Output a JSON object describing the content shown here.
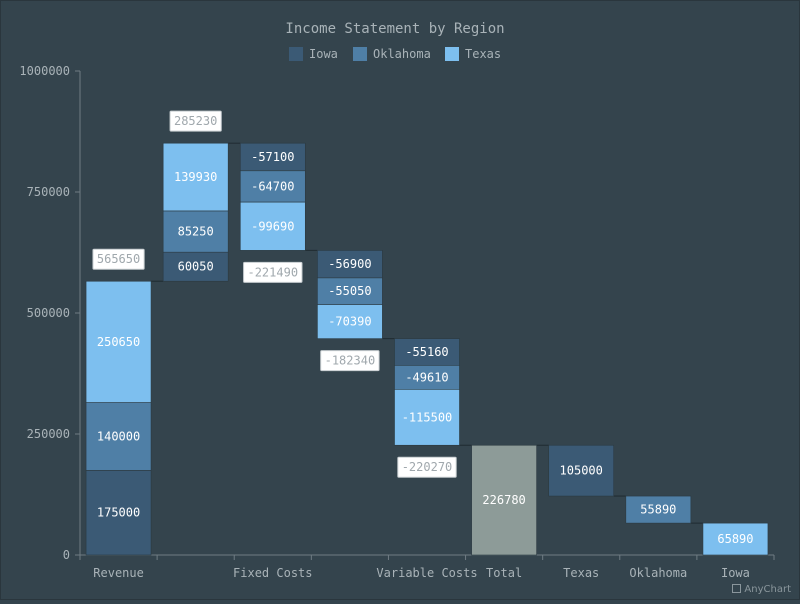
{
  "colors": {
    "background": "#34444d",
    "axis": "#6f7c83",
    "text": "#a9b3b8",
    "label_text": "#ffffff",
    "Iowa": "#3b5a75",
    "Oklahoma": "#4f7fa6",
    "Texas": "#7dbfef",
    "total": "#8d9b98",
    "connector": "#1f2b31",
    "callout_fill": "#ffffff",
    "callout_text": "#a0a8ad"
  },
  "credit": "AnyChart",
  "chart_data": {
    "type": "bar",
    "subtype": "stacked-waterfall",
    "title": "Income Statement by Region",
    "xlabel": "",
    "ylabel": "",
    "ylim": [
      0,
      1000000
    ],
    "y_ticks": [
      "0",
      "250000",
      "500000",
      "750000",
      "1000000"
    ],
    "y_tick_values": [
      0,
      250000,
      500000,
      750000,
      1000000
    ],
    "legend": {
      "position": "top",
      "entries": [
        "Iowa",
        "Oklahoma",
        "Texas"
      ]
    },
    "grid": false,
    "categories": [
      "Revenue",
      "",
      "Fixed Costs",
      "",
      "Variable Costs",
      "Total",
      "Texas",
      "Oklahoma",
      "Iowa"
    ],
    "bars": [
      {
        "category": "Revenue",
        "base": 0,
        "segments": [
          {
            "series": "Iowa",
            "value": 175000,
            "label": "175000"
          },
          {
            "series": "Oklahoma",
            "value": 140000,
            "label": "140000"
          },
          {
            "series": "Texas",
            "value": 250650,
            "label": "250650"
          }
        ],
        "total": 565650,
        "total_label": "565650"
      },
      {
        "category": "",
        "base": 565650,
        "segments": [
          {
            "series": "Iowa",
            "value": 60050,
            "label": "60050"
          },
          {
            "series": "Oklahoma",
            "value": 85250,
            "label": "85250"
          },
          {
            "series": "Texas",
            "value": 139930,
            "label": "139930"
          }
        ],
        "total": 285230,
        "total_label": "285230"
      },
      {
        "category": "Fixed Costs",
        "base": 850880,
        "segments": [
          {
            "series": "Iowa",
            "value": -57100,
            "label": "-57100"
          },
          {
            "series": "Oklahoma",
            "value": -64700,
            "label": "-64700"
          },
          {
            "series": "Texas",
            "value": -99690,
            "label": "-99690"
          }
        ],
        "total": -221490,
        "total_label": "-221490"
      },
      {
        "category": "",
        "base": 629390,
        "segments": [
          {
            "series": "Iowa",
            "value": -56900,
            "label": "-56900"
          },
          {
            "series": "Oklahoma",
            "value": -55050,
            "label": "-55050"
          },
          {
            "series": "Texas",
            "value": -70390,
            "label": "-70390"
          }
        ],
        "total": -182340,
        "total_label": "-182340"
      },
      {
        "category": "Variable Costs",
        "base": 447050,
        "segments": [
          {
            "series": "Iowa",
            "value": -55160,
            "label": "-55160"
          },
          {
            "series": "Oklahoma",
            "value": -49610,
            "label": "-49610"
          },
          {
            "series": "Texas",
            "value": -115500,
            "label": "-115500"
          }
        ],
        "total": -220270,
        "total_label": "-220270"
      },
      {
        "category": "Total",
        "base": 0,
        "segments": [
          {
            "series": "total",
            "value": 226780,
            "label": "226780"
          }
        ]
      },
      {
        "category": "Texas",
        "base": 226780,
        "segments": [
          {
            "series": "Iowa",
            "value": -105000,
            "label": "105000"
          }
        ]
      },
      {
        "category": "Oklahoma",
        "base": 121780,
        "segments": [
          {
            "series": "Oklahoma",
            "value": -55890,
            "label": "55890"
          }
        ]
      },
      {
        "category": "Iowa",
        "base": 65890,
        "segments": [
          {
            "series": "Texas",
            "value": -65890,
            "label": "65890"
          }
        ]
      }
    ]
  }
}
